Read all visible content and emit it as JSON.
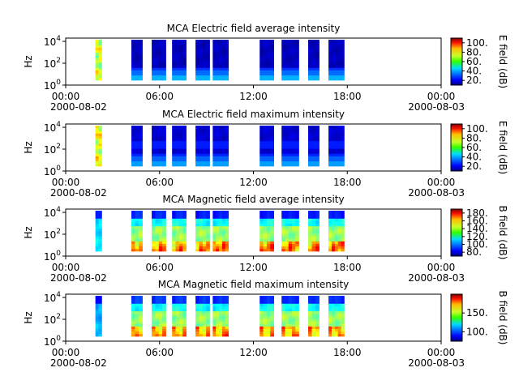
{
  "chart_data": [
    {
      "type": "heatmap",
      "title": "MCA  Electric field average intensity",
      "ylabel": "Hz",
      "yscale": "log",
      "ylim": [
        1,
        20000
      ],
      "yticks": [
        "10⁰",
        "10²",
        "10⁴"
      ],
      "xlim_hours": [
        0,
        24
      ],
      "xticks": [
        "00:00",
        "06:00",
        "12:00",
        "18:00",
        "00:00"
      ],
      "xdates": [
        "2000-08-02",
        "2000-08-03"
      ],
      "colorbar": {
        "label": "E field (dB)",
        "ticks": [
          "20.",
          "40.",
          "60.",
          "80.",
          "100."
        ],
        "range": [
          10,
          110
        ]
      },
      "segments_hours": [
        [
          1.9,
          2.3
        ],
        [
          4.2,
          4.9
        ],
        [
          5.5,
          6.4
        ],
        [
          6.8,
          7.7
        ],
        [
          8.3,
          9.2
        ],
        [
          9.4,
          10.4
        ],
        [
          12.4,
          13.3
        ],
        [
          13.8,
          14.9
        ],
        [
          15.5,
          16.2
        ],
        [
          16.8,
          17.8
        ]
      ],
      "color_profile": "e_avg",
      "grid": false
    },
    {
      "type": "heatmap",
      "title": "MCA  Electric field maximum intensity",
      "ylabel": "Hz",
      "yscale": "log",
      "ylim": [
        1,
        20000
      ],
      "yticks": [
        "10⁰",
        "10²",
        "10⁴"
      ],
      "xlim_hours": [
        0,
        24
      ],
      "xticks": [
        "00:00",
        "06:00",
        "12:00",
        "18:00",
        "00:00"
      ],
      "xdates": [
        "2000-08-02",
        "2000-08-03"
      ],
      "colorbar": {
        "label": "E field (dB)",
        "ticks": [
          "20.",
          "40.",
          "60.",
          "80.",
          "100."
        ],
        "range": [
          10,
          110
        ]
      },
      "segments_hours": [
        [
          1.9,
          2.3
        ],
        [
          4.2,
          4.9
        ],
        [
          5.5,
          6.4
        ],
        [
          6.8,
          7.7
        ],
        [
          8.3,
          9.2
        ],
        [
          9.4,
          10.4
        ],
        [
          12.4,
          13.3
        ],
        [
          13.8,
          14.9
        ],
        [
          15.5,
          16.2
        ],
        [
          16.8,
          17.8
        ]
      ],
      "color_profile": "e_max",
      "grid": false
    },
    {
      "type": "heatmap",
      "title": "MCA  Magnetic field average intensity",
      "ylabel": "Hz",
      "yscale": "log",
      "ylim": [
        1,
        20000
      ],
      "yticks": [
        "10⁰",
        "10²",
        "10⁴"
      ],
      "xlim_hours": [
        0,
        24
      ],
      "xticks": [
        "00:00",
        "06:00",
        "12:00",
        "18:00",
        "00:00"
      ],
      "xdates": [
        "2000-08-02",
        "2000-08-03"
      ],
      "colorbar": {
        "label": "B field (dB)",
        "ticks": [
          "80.",
          "100.",
          "120.",
          "140.",
          "160.",
          "180."
        ],
        "range": [
          70,
          190
        ]
      },
      "segments_hours": [
        [
          1.9,
          2.3
        ],
        [
          4.2,
          4.9
        ],
        [
          5.5,
          6.4
        ],
        [
          6.8,
          7.7
        ],
        [
          8.3,
          9.2
        ],
        [
          9.4,
          10.4
        ],
        [
          12.4,
          13.3
        ],
        [
          13.8,
          14.9
        ],
        [
          15.5,
          16.2
        ],
        [
          16.8,
          17.8
        ]
      ],
      "color_profile": "b_avg",
      "grid": false
    },
    {
      "type": "heatmap",
      "title": "MCA  Magnetic field maximum intensity",
      "ylabel": "Hz",
      "yscale": "log",
      "ylim": [
        1,
        20000
      ],
      "yticks": [
        "10⁰",
        "10²",
        "10⁴"
      ],
      "xlim_hours": [
        0,
        24
      ],
      "xticks": [
        "00:00",
        "06:00",
        "12:00",
        "18:00",
        "00:00"
      ],
      "xdates": [
        "2000-08-02",
        "2000-08-03"
      ],
      "colorbar": {
        "label": "B field (dB)",
        "ticks": [
          "100.",
          "150."
        ],
        "range": [
          75,
          200
        ]
      },
      "segments_hours": [
        [
          1.9,
          2.3
        ],
        [
          4.2,
          4.9
        ],
        [
          5.5,
          6.4
        ],
        [
          6.8,
          7.7
        ],
        [
          8.3,
          9.2
        ],
        [
          9.4,
          10.4
        ],
        [
          12.4,
          13.3
        ],
        [
          13.8,
          14.9
        ],
        [
          15.5,
          16.2
        ],
        [
          16.8,
          17.8
        ]
      ],
      "color_profile": "b_max",
      "grid": false
    }
  ]
}
